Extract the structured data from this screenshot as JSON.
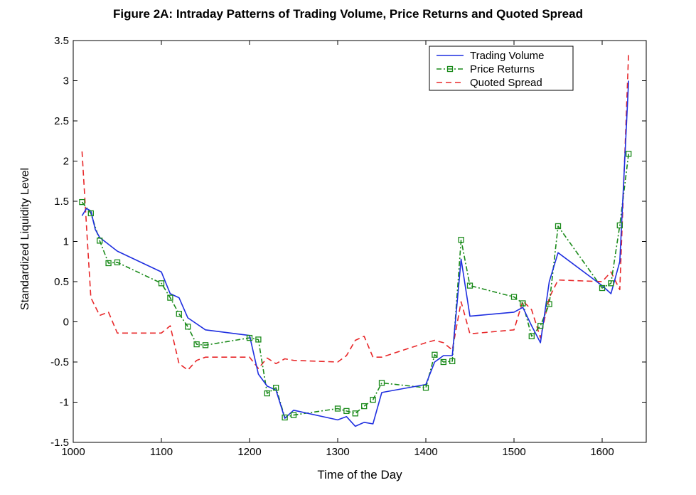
{
  "chart_data": {
    "type": "line",
    "title": "Figure 2A: Intraday Patterns of Trading Volume, Price Returns and Quoted Spread",
    "xlabel": "Time of the Day",
    "ylabel": "Standardized Liquidity Level",
    "xlim": [
      1000,
      1650
    ],
    "ylim": [
      -1.5,
      3.5
    ],
    "xticks": [
      1000,
      1100,
      1200,
      1300,
      1400,
      1500,
      1600
    ],
    "yticks": [
      -1.5,
      -1,
      -0.5,
      0,
      0.5,
      1,
      1.5,
      2,
      2.5,
      3,
      3.5
    ],
    "grid": false,
    "legend_position": "top-right",
    "series": [
      {
        "name": "Trading Volume",
        "color": "#1f2fe0",
        "style": "solid",
        "marker": "none",
        "x": [
          1010,
          1015,
          1020,
          1025,
          1030,
          1050,
          1100,
          1110,
          1120,
          1130,
          1150,
          1200,
          1210,
          1220,
          1230,
          1240,
          1250,
          1300,
          1310,
          1320,
          1330,
          1340,
          1350,
          1400,
          1410,
          1420,
          1430,
          1440,
          1450,
          1500,
          1510,
          1520,
          1530,
          1540,
          1550,
          1600,
          1610,
          1620,
          1630
        ],
        "y": [
          1.32,
          1.41,
          1.38,
          1.15,
          1.05,
          0.88,
          0.62,
          0.35,
          0.3,
          0.05,
          -0.1,
          -0.17,
          -0.65,
          -0.8,
          -0.85,
          -1.2,
          -1.1,
          -1.22,
          -1.18,
          -1.3,
          -1.25,
          -1.27,
          -0.88,
          -0.78,
          -0.5,
          -0.42,
          -0.42,
          0.78,
          0.07,
          0.12,
          0.18,
          -0.05,
          -0.26,
          0.5,
          0.86,
          0.45,
          0.35,
          0.75,
          3.0
        ]
      },
      {
        "name": "Price Returns",
        "color": "#1a8a1a",
        "style": "dash-dot",
        "marker": "square",
        "x": [
          1010,
          1020,
          1030,
          1040,
          1050,
          1100,
          1110,
          1120,
          1130,
          1140,
          1150,
          1200,
          1210,
          1220,
          1230,
          1240,
          1250,
          1300,
          1310,
          1320,
          1330,
          1340,
          1350,
          1400,
          1410,
          1420,
          1430,
          1440,
          1450,
          1500,
          1510,
          1520,
          1530,
          1540,
          1550,
          1600,
          1610,
          1620,
          1630
        ],
        "y": [
          1.49,
          1.35,
          1.01,
          0.73,
          0.74,
          0.48,
          0.3,
          0.1,
          -0.06,
          -0.28,
          -0.29,
          -0.2,
          -0.22,
          -0.89,
          -0.82,
          -1.19,
          -1.16,
          -1.08,
          -1.11,
          -1.14,
          -1.05,
          -0.97,
          -0.76,
          -0.82,
          -0.41,
          -0.5,
          -0.49,
          1.02,
          0.45,
          0.31,
          0.23,
          -0.18,
          -0.05,
          0.22,
          1.19,
          0.42,
          0.48,
          1.2,
          2.09
        ]
      },
      {
        "name": "Quoted Spread",
        "color": "#e8282a",
        "style": "dashed",
        "marker": "none",
        "x": [
          1010,
          1015,
          1020,
          1030,
          1040,
          1050,
          1100,
          1110,
          1120,
          1130,
          1140,
          1150,
          1200,
          1210,
          1220,
          1230,
          1240,
          1250,
          1300,
          1310,
          1320,
          1330,
          1340,
          1350,
          1400,
          1410,
          1420,
          1430,
          1440,
          1450,
          1500,
          1510,
          1520,
          1530,
          1540,
          1550,
          1600,
          1610,
          1620,
          1630
        ],
        "y": [
          2.12,
          1.2,
          0.3,
          0.08,
          0.12,
          -0.14,
          -0.14,
          -0.05,
          -0.52,
          -0.6,
          -0.48,
          -0.44,
          -0.44,
          -0.58,
          -0.45,
          -0.52,
          -0.46,
          -0.48,
          -0.5,
          -0.42,
          -0.23,
          -0.18,
          -0.44,
          -0.44,
          -0.26,
          -0.23,
          -0.26,
          -0.35,
          0.25,
          -0.15,
          -0.1,
          0.26,
          0.15,
          -0.2,
          0.3,
          0.52,
          0.5,
          0.62,
          0.4,
          3.35
        ]
      }
    ]
  }
}
